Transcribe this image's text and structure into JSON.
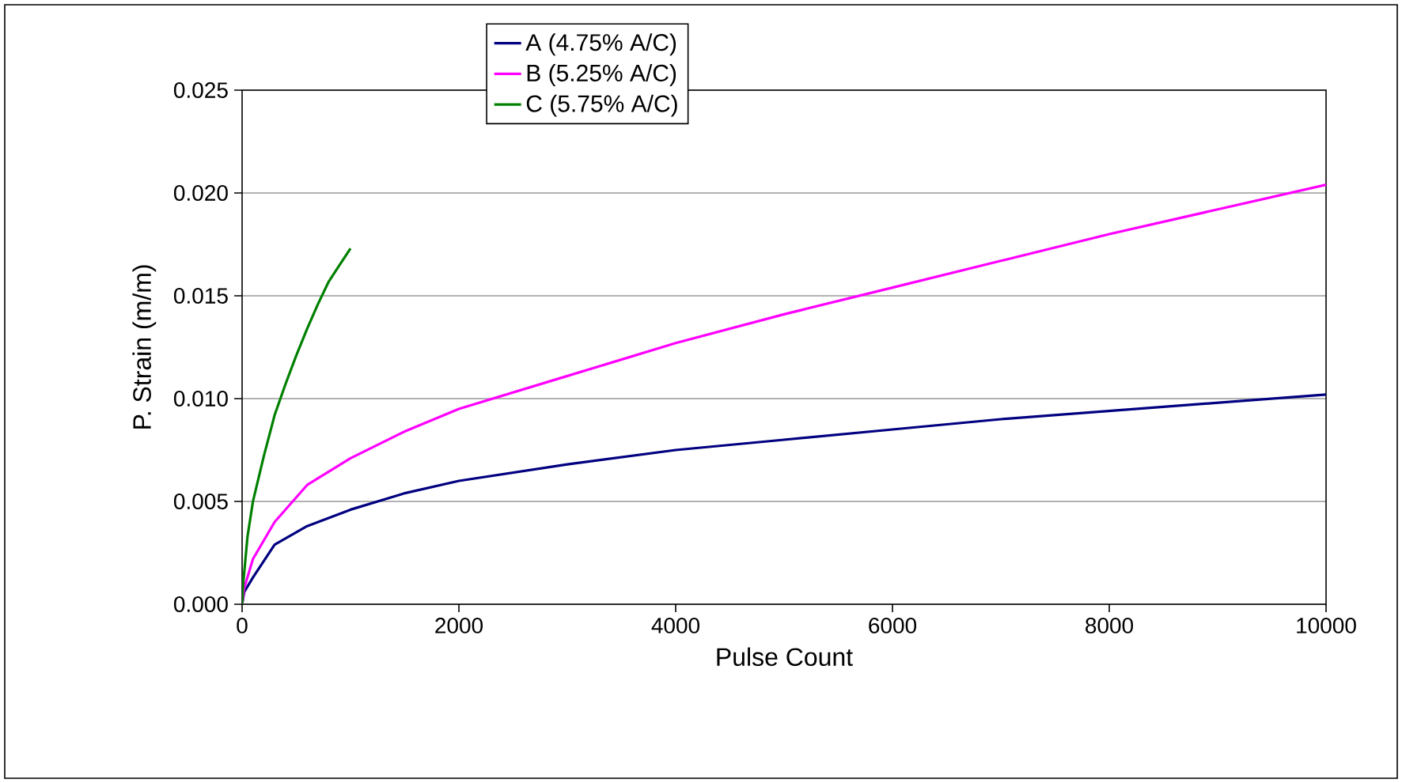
{
  "chart_data": {
    "type": "line",
    "xlabel": "Pulse Count",
    "ylabel": "P. Strain (m/m)",
    "xlim": [
      0,
      10000
    ],
    "xticks": [
      0,
      2000,
      4000,
      6000,
      8000,
      10000
    ],
    "ylim": [
      0,
      0.025
    ],
    "yticks": [
      {
        "value": 0,
        "label": "0.000"
      },
      {
        "value": 0.005,
        "label": "0.005"
      },
      {
        "value": 0.01,
        "label": "0.010"
      },
      {
        "value": 0.015,
        "label": "0.015"
      },
      {
        "value": 0.02,
        "label": "0.020"
      },
      {
        "value": 0.025,
        "label": "0.025"
      }
    ],
    "grid": "y",
    "legend": "top",
    "marker": "none",
    "line_style": "solid",
    "series": [
      {
        "name": "A (4.75% A/C)",
        "color": "#000080",
        "x": [
          0,
          20,
          100,
          300,
          600,
          1000,
          1500,
          2000,
          3000,
          4000,
          5000,
          6000,
          7000,
          8000,
          9000,
          10000
        ],
        "values": [
          0,
          0.0006,
          0.0013,
          0.0029,
          0.0038,
          0.0046,
          0.0054,
          0.006,
          0.0068,
          0.0075,
          0.008,
          0.0085,
          0.009,
          0.0094,
          0.0098,
          0.0102
        ]
      },
      {
        "name": "B (5.25% A/C)",
        "color": "#ff00ff",
        "x": [
          0,
          20,
          100,
          300,
          600,
          1000,
          1500,
          2000,
          3000,
          4000,
          5000,
          6000,
          7000,
          8000,
          9000,
          10000
        ],
        "values": [
          0,
          0.0008,
          0.0022,
          0.004,
          0.0058,
          0.0071,
          0.0084,
          0.0095,
          0.0111,
          0.0127,
          0.0141,
          0.0154,
          0.0167,
          0.018,
          0.0192,
          0.0204
        ]
      },
      {
        "name": "C (5.75% A/C)",
        "color": "#008000",
        "x": [
          0,
          10,
          50,
          100,
          200,
          300,
          400,
          500,
          600,
          700,
          800,
          900,
          1000
        ],
        "values": [
          0,
          0.001,
          0.0033,
          0.005,
          0.0072,
          0.0092,
          0.0107,
          0.0121,
          0.0134,
          0.0146,
          0.0157,
          0.0165,
          0.0173
        ]
      }
    ]
  }
}
